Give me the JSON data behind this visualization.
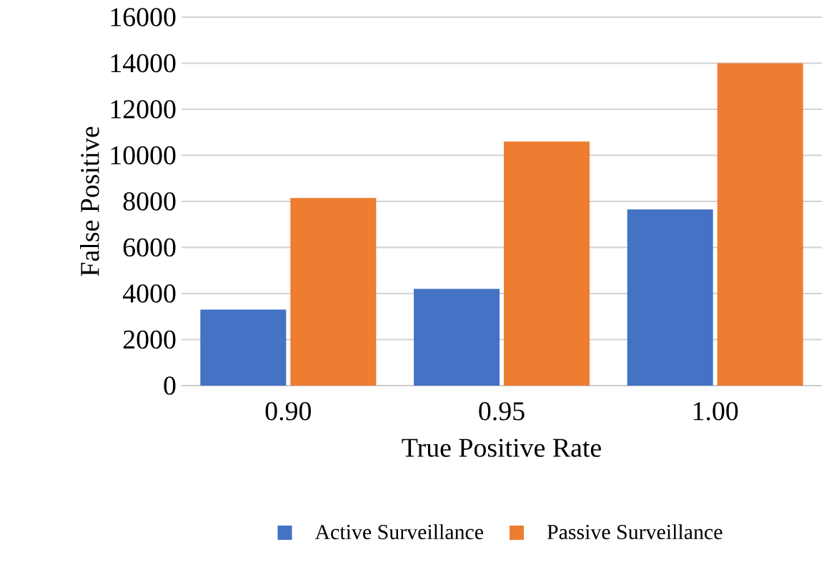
{
  "chart_data": {
    "type": "bar",
    "xlabel": "True Positive Rate",
    "ylabel": "False Positive",
    "categories": [
      "0.90",
      "0.95",
      "1.00"
    ],
    "series": [
      {
        "name": "Active Surveillance",
        "color": "#4472c4",
        "values": [
          3300,
          4200,
          7650
        ]
      },
      {
        "name": "Passive Surveillance",
        "color": "#ed7d31",
        "values": [
          8150,
          10600,
          14000
        ]
      }
    ],
    "ylim": [
      0,
      16000
    ],
    "yticks": [
      0,
      2000,
      4000,
      6000,
      8000,
      10000,
      12000,
      14000,
      16000
    ],
    "grid": "y",
    "legend": "bottom"
  }
}
